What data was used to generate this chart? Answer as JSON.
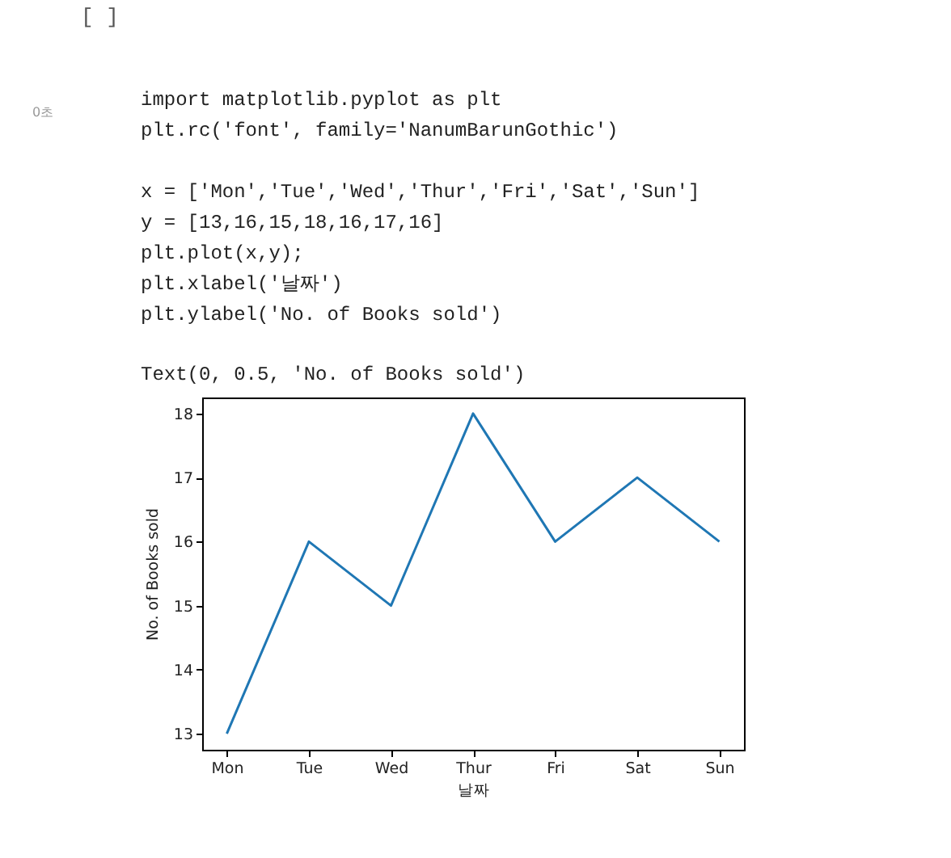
{
  "chart_data": {
    "type": "line",
    "categories": [
      "Mon",
      "Tue",
      "Wed",
      "Thur",
      "Fri",
      "Sat",
      "Sun"
    ],
    "values": [
      13,
      16,
      15,
      18,
      16,
      17,
      16
    ],
    "color": "#1f77b4",
    "xlabel": "날짜",
    "ylabel": "No. of Books sold",
    "ylim": [
      12.75,
      18.25
    ],
    "yticks": [
      13,
      14,
      15,
      16,
      17,
      18
    ],
    "grid": false,
    "marker": "none",
    "line_style": "solid",
    "annotations": [
      "[ ]",
      "0초",
      "import matplotlib.pyplot as plt",
      "plt.rc('font', family='NanumBarunGothic')",
      "x = ['Mon','Tue','Wed','Thur','Fri','Sat','Sun']",
      "y = [13,16,15,18,16,17,16]",
      "plt.plot(x,y);",
      "plt.xlabel('날짜')",
      "plt.ylabel('No. of Books sold')",
      "Text(0, 0.5, 'No. of Books sold')"
    ]
  }
}
